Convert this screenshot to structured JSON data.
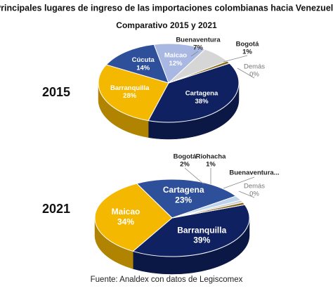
{
  "title": "Principales lugares de ingreso de las importaciones colombianas hacia Venezuela",
  "subtitle": "Comparativo 2015 y 2021",
  "source": "Fuente: Analdex con datos de Legiscomex",
  "chart_data": [
    {
      "type": "pie",
      "title": "2015",
      "categories": [
        "Cartagena",
        "Barranquilla",
        "Cúcuta",
        "Maicao",
        "Buenaventura",
        "Bogotá",
        "Demás"
      ],
      "values": [
        38,
        28,
        14,
        12,
        7,
        1,
        0
      ],
      "value_labels": [
        "38%",
        "28%",
        "14%",
        "12%",
        "7%",
        "1%",
        "0%"
      ],
      "colors": [
        "#0f2160",
        "#f5b800",
        "#2e4f9a",
        "#a8b8e2",
        "#d6d6d6",
        "#8a6a1c",
        "#e8e8e8"
      ]
    },
    {
      "type": "pie",
      "title": "2021",
      "categories": [
        "Barranquilla",
        "Maicao",
        "Cartagena",
        "Bogotá",
        "Riohacha",
        "Buenaventura...",
        "Demás"
      ],
      "values": [
        39,
        34,
        23,
        2,
        1,
        1,
        0
      ],
      "value_labels": [
        "39%",
        "34%",
        "23%",
        "2%",
        "1%",
        null,
        "0%"
      ],
      "colors": [
        "#0f2160",
        "#f5b800",
        "#2e4f9a",
        "#bcd3ee",
        "#cfcfcf",
        "#8a6a1c",
        "#e8e8e8"
      ]
    }
  ]
}
